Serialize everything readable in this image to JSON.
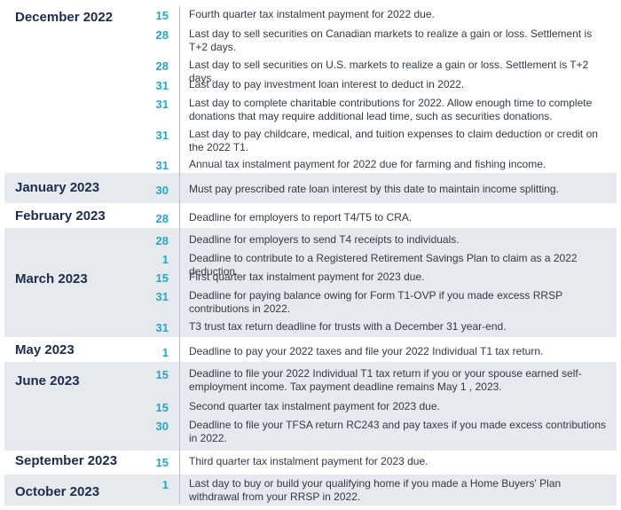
{
  "months": [
    {
      "name": "December 2022",
      "shaded": false,
      "entries": [
        {
          "day": "15",
          "text": "Fourth quarter tax instalment payment for 2022 due."
        },
        {
          "day": "28",
          "text": "Last day to sell securities on Canadian markets to realize a gain or loss. Settlement is T+2 days."
        },
        {
          "day": "28",
          "text": "Last day to sell securities on U.S. markets to realize a gain or loss. Settlement is T+2 days."
        },
        {
          "day": "31",
          "text": "Last day to pay investment loan interest to deduct in 2022."
        },
        {
          "day": "31",
          "text": "Last day to complete charitable contributions for 2022. Allow enough time to complete donations that may require additional lead time, such as securities donations."
        },
        {
          "day": "31",
          "text": "Last day to pay childcare, medical, and tuition expenses to claim deduction or credit on the 2022 T1."
        },
        {
          "day": "31",
          "text": "Annual tax instalment payment for 2022 due for farming and fishing income."
        }
      ]
    },
    {
      "name": "January 2023",
      "shaded": true,
      "entries": [
        {
          "day": "30",
          "text": "Must pay prescribed rate loan interest by this date to maintain income splitting."
        }
      ]
    },
    {
      "name": "February 2023",
      "shaded": false,
      "entries": [
        {
          "day": "28",
          "text": "Deadline for employers to report T4/T5 to CRA."
        }
      ]
    },
    {
      "name": "March 2023",
      "shaded": true,
      "entries": [
        {
          "day": "28",
          "text": "Deadline for employers to send T4 receipts to   individuals."
        },
        {
          "day": "1",
          "text": "Deadline to contribute to a Registered Retirement Savings Plan to claim as a 2022 deduction."
        },
        {
          "day": "15",
          "text": "First quarter tax instalment payment for 2023 due."
        },
        {
          "day": "31",
          "text": "Deadline for paying balance owing for Form T1-OVP if you made excess RRSP contributions in 2022."
        },
        {
          "day": "31",
          "text": "T3 trust tax return deadline for trusts with a December 31 year-end."
        }
      ]
    },
    {
      "name": "May 2023",
      "shaded": false,
      "entries": [
        {
          "day": "1",
          "text": "Deadline to pay your 2022 taxes and file your 2022 Individual T1 tax return."
        }
      ]
    },
    {
      "name": "June 2023",
      "shaded": true,
      "entries": [
        {
          "day": "15",
          "text": "Deadline to file your 2022 Individual T1 tax return if you or your spouse earned self- employment income. Tax payment deadline remains May 1 , 2023."
        },
        {
          "day": "15",
          "text": "Second quarter tax instalment payment for 2023 due."
        },
        {
          "day": "30",
          "text": "Deadline to file your TFSA return RC243 and pay taxes if you made excess contributions in 2022."
        }
      ]
    },
    {
      "name": "September 2023",
      "shaded": false,
      "entries": [
        {
          "day": "15",
          "text": "Third quarter tax instalment payment for 2023 due."
        }
      ]
    },
    {
      "name": "October 2023",
      "shaded": true,
      "entries": [
        {
          "day": "1",
          "text": "Last day to buy or build your qualifying home if you made a Home Buyers' Plan withdrawal from your RRSP in 2022."
        }
      ]
    }
  ]
}
